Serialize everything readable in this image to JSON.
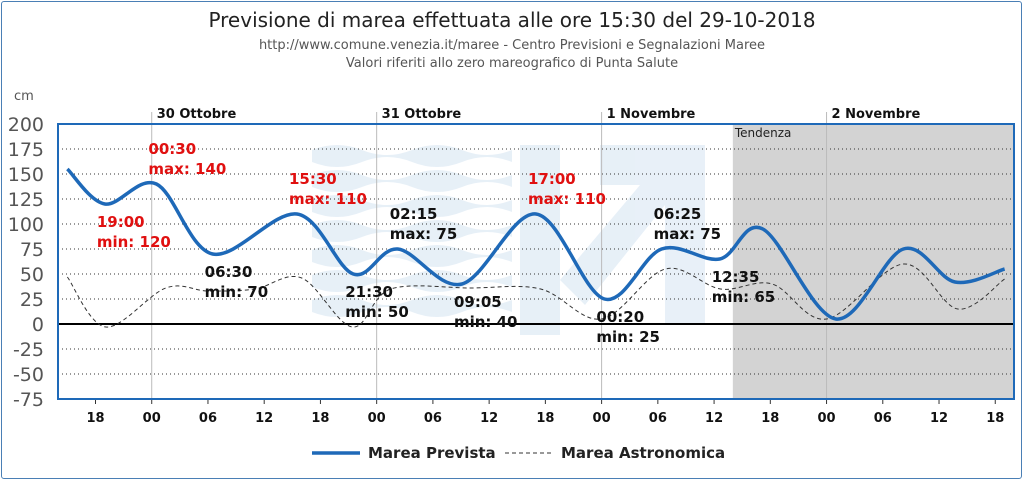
{
  "header": {
    "title": "Previsione di marea effettuata alle ore 15:30 del 29-10-2018",
    "source": "http://www.comune.venezia.it/maree - Centro Previsioni e Segnalazioni Maree",
    "note": "Valori riferiti allo zero mareografico di Punta Salute"
  },
  "chart_data": {
    "type": "line",
    "title": "Previsione di marea effettuata alle ore 15:30 del 29-10-2018",
    "ylabel": "cm",
    "ylim": [
      -75,
      200
    ],
    "yticks": [
      200,
      175,
      150,
      125,
      100,
      75,
      50,
      25,
      0,
      -25,
      -50,
      -75
    ],
    "x_unit": "hours since 29-10-2018 00:00",
    "xlim": [
      14,
      116
    ],
    "xticks": [
      {
        "h": 18,
        "label": "18"
      },
      {
        "h": 24,
        "label": "00"
      },
      {
        "h": 30,
        "label": "06"
      },
      {
        "h": 36,
        "label": "12"
      },
      {
        "h": 42,
        "label": "18"
      },
      {
        "h": 48,
        "label": "00"
      },
      {
        "h": 54,
        "label": "06"
      },
      {
        "h": 60,
        "label": "12"
      },
      {
        "h": 66,
        "label": "18"
      },
      {
        "h": 72,
        "label": "00"
      },
      {
        "h": 78,
        "label": "06"
      },
      {
        "h": 84,
        "label": "12"
      },
      {
        "h": 90,
        "label": "18"
      },
      {
        "h": 96,
        "label": "00"
      },
      {
        "h": 102,
        "label": "06"
      },
      {
        "h": 108,
        "label": "12"
      },
      {
        "h": 114,
        "label": "18"
      }
    ],
    "days": [
      {
        "h": 24,
        "label": "30 Ottobre"
      },
      {
        "h": 48,
        "label": "31 Ottobre"
      },
      {
        "h": 72,
        "label": "1 Novembre"
      },
      {
        "h": 96,
        "label": "2 Novembre"
      }
    ],
    "tendency": {
      "from_h": 86,
      "label": "Tendenza"
    },
    "grid": true,
    "colors": {
      "prevista": "#1e69b8",
      "astronomica": "#333333",
      "alert": "#e01010",
      "normal": "#111111",
      "tendency": "#d3d3d3"
    },
    "series": [
      {
        "name": "Marea Prevista",
        "points": [
          [
            15,
            155
          ],
          [
            19,
            120
          ],
          [
            24.5,
            140
          ],
          [
            30.5,
            70
          ],
          [
            39.5,
            110
          ],
          [
            45.5,
            50
          ],
          [
            50.25,
            75
          ],
          [
            57.1,
            40
          ],
          [
            65,
            110
          ],
          [
            72.3,
            25
          ],
          [
            78.4,
            75
          ],
          [
            84.6,
            65
          ],
          [
            89.2,
            95
          ],
          [
            97,
            5
          ],
          [
            104.2,
            75
          ],
          [
            109.7,
            42
          ],
          [
            115,
            55
          ]
        ]
      },
      {
        "name": "Marea Astronomica",
        "points": [
          [
            15,
            47
          ],
          [
            19.1,
            -3
          ],
          [
            25.5,
            36
          ],
          [
            30,
            33
          ],
          [
            35,
            35
          ],
          [
            40,
            46
          ],
          [
            45.4,
            -3
          ],
          [
            49.5,
            35
          ],
          [
            58,
            36
          ],
          [
            65.5,
            35
          ],
          [
            72,
            5
          ],
          [
            78.8,
            55
          ],
          [
            84.7,
            35
          ],
          [
            90.2,
            40
          ],
          [
            96,
            5
          ],
          [
            104.2,
            60
          ],
          [
            110,
            15
          ],
          [
            115,
            45
          ]
        ]
      }
    ],
    "annotations": [
      {
        "h": 19,
        "v": 120,
        "time": "19:00",
        "text": "min: 120",
        "kind": "min",
        "alert": true
      },
      {
        "h": 24.5,
        "v": 140,
        "time": "00:30",
        "text": "max: 140",
        "kind": "max",
        "alert": true
      },
      {
        "h": 30.5,
        "v": 70,
        "time": "06:30",
        "text": "min: 70",
        "kind": "min",
        "alert": false
      },
      {
        "h": 39.5,
        "v": 110,
        "time": "15:30",
        "text": "max: 110",
        "kind": "max",
        "alert": true
      },
      {
        "h": 45.5,
        "v": 50,
        "time": "21:30",
        "text": "min: 50",
        "kind": "min",
        "alert": false
      },
      {
        "h": 50.25,
        "v": 75,
        "time": "02:15",
        "text": "max: 75",
        "kind": "max",
        "alert": false
      },
      {
        "h": 57.1,
        "v": 40,
        "time": "09:05",
        "text": "min: 40",
        "kind": "min",
        "alert": false
      },
      {
        "h": 65,
        "v": 110,
        "time": "17:00",
        "text": "max: 110",
        "kind": "max",
        "alert": true
      },
      {
        "h": 72.3,
        "v": 25,
        "time": "00:20",
        "text": "min: 25",
        "kind": "min",
        "alert": false
      },
      {
        "h": 78.4,
        "v": 75,
        "time": "06:25",
        "text": "max: 75",
        "kind": "max",
        "alert": false
      },
      {
        "h": 84.6,
        "v": 65,
        "time": "12:35",
        "text": "min: 65",
        "kind": "min",
        "alert": false
      }
    ],
    "legend": [
      {
        "label": "Marea Prevista",
        "series": 0
      },
      {
        "label": "Marea Astronomica",
        "series": 1
      }
    ],
    "legend_position": "bottom"
  }
}
